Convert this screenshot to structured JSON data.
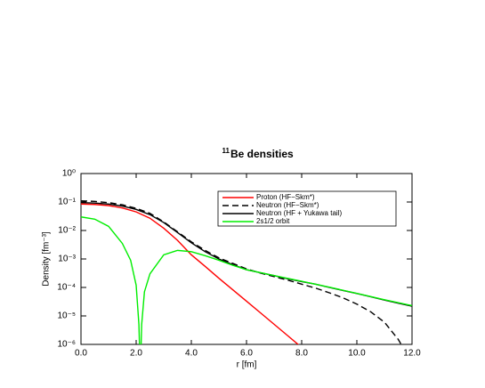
{
  "chart_data": {
    "type": "line",
    "title_sup": "11",
    "title": "Be densities",
    "xlabel": "r  [fm]",
    "ylabel": "Density [fm⁻³]",
    "log_y": true,
    "xlim": [
      0,
      12
    ],
    "ylim": [
      1e-06,
      1
    ],
    "xticks": [
      {
        "value": 0,
        "label": "0.0"
      },
      {
        "value": 2,
        "label": "2.0"
      },
      {
        "value": 4,
        "label": "4.0"
      },
      {
        "value": 6,
        "label": "6.0"
      },
      {
        "value": 8,
        "label": "8.0"
      },
      {
        "value": 10,
        "label": "10.0"
      },
      {
        "value": 12,
        "label": "12.0"
      }
    ],
    "yticks": [
      {
        "value": 1,
        "label": "10⁰"
      },
      {
        "value": 0.1,
        "label": "10⁻¹"
      },
      {
        "value": 0.01,
        "label": "10⁻²"
      },
      {
        "value": 0.001,
        "label": "10⁻³"
      },
      {
        "value": 0.0001,
        "label": "10⁻⁴"
      },
      {
        "value": 1e-05,
        "label": "10⁻⁵"
      },
      {
        "value": 1e-06,
        "label": "10⁻⁶"
      }
    ],
    "series": [
      {
        "name": "Proton (HF−Skm*)",
        "color": "#ff0000",
        "dash": false,
        "x": [
          0,
          0.5,
          1,
          1.5,
          2,
          2.5,
          3,
          3.5,
          4,
          4.5,
          5,
          5.5,
          6,
          6.5,
          7,
          7.5,
          8
        ],
        "values": [
          0.085,
          0.082,
          0.075,
          0.062,
          0.045,
          0.027,
          0.012,
          0.0045,
          0.0014,
          0.00055,
          0.00021,
          8.3e-05,
          3.3e-05,
          1.3e-05,
          5.1e-06,
          2e-06,
          7.8e-07
        ]
      },
      {
        "name": "Neutron (HF−Skm*)",
        "color": "#000000",
        "dash": true,
        "x": [
          0,
          0.5,
          1,
          1.5,
          2,
          2.5,
          3,
          3.5,
          4,
          4.5,
          5,
          5.5,
          6,
          6.5,
          7,
          7.5,
          8,
          8.5,
          9,
          9.5,
          10,
          10.5,
          11,
          11.5,
          11.7
        ],
        "values": [
          0.11,
          0.105,
          0.095,
          0.08,
          0.06,
          0.04,
          0.02,
          0.009,
          0.004,
          0.002,
          0.0011,
          0.0007,
          0.00045,
          0.00032,
          0.00024,
          0.00018,
          0.00013,
          9.5e-05,
          6.5e-05,
          4.3e-05,
          2.6e-05,
          1.4e-05,
          6e-06,
          1.5e-06,
          7e-07
        ]
      },
      {
        "name": "Neutron (HF + Yukawa tail)",
        "color": "#000000",
        "dash": false,
        "x": [
          0,
          0.5,
          1,
          1.5,
          2,
          2.5,
          3,
          3.5,
          4,
          4.5,
          5,
          5.5,
          6,
          6.5,
          7,
          7.5,
          8,
          8.5,
          9,
          9.5,
          10,
          10.5,
          11,
          11.5,
          12
        ],
        "values": [
          0.095,
          0.092,
          0.085,
          0.072,
          0.055,
          0.036,
          0.019,
          0.0085,
          0.0037,
          0.0018,
          0.001,
          0.00063,
          0.00042,
          0.00033,
          0.00026,
          0.0002,
          0.00016,
          0.00013,
          0.0001,
          7.8e-05,
          6.1e-05,
          4.7e-05,
          3.6e-05,
          2.8e-05,
          2.2e-05
        ]
      },
      {
        "name": "2s1/2 orbit",
        "color": "#00ee00",
        "dash": false,
        "x": [
          0,
          0.5,
          1,
          1.5,
          1.8,
          2,
          2.1,
          2.15,
          2.2,
          2.3,
          2.5,
          3,
          3.5,
          4,
          4.5,
          5,
          5.5,
          6,
          7,
          8,
          9,
          10,
          11,
          12
        ],
        "values": [
          0.03,
          0.025,
          0.014,
          0.0035,
          0.0009,
          0.00012,
          5e-06,
          1e-07,
          5e-06,
          7e-05,
          0.0003,
          0.0014,
          0.002,
          0.0018,
          0.0013,
          0.0009,
          0.0006,
          0.00042,
          0.00026,
          0.000165,
          0.000102,
          6.2e-05,
          3.7e-05,
          2.3e-05
        ]
      }
    ]
  }
}
